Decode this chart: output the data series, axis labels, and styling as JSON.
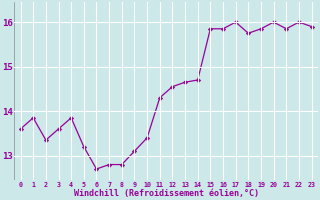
{
  "x": [
    0,
    1,
    2,
    3,
    4,
    5,
    6,
    7,
    8,
    9,
    10,
    11,
    12,
    13,
    14,
    15,
    16,
    17,
    18,
    19,
    20,
    21,
    22,
    23
  ],
  "y": [
    13.6,
    13.85,
    13.35,
    13.6,
    13.85,
    13.2,
    12.7,
    12.8,
    12.8,
    13.1,
    13.4,
    14.3,
    14.55,
    14.65,
    14.7,
    15.85,
    15.85,
    16.0,
    15.75,
    15.85,
    16.0,
    15.85,
    16.0,
    15.9
  ],
  "line_color": "#990099",
  "marker": "D",
  "marker_size": 2.2,
  "bg_color": "#cce8e8",
  "grid_color": "#ffffff",
  "xlabel": "Windchill (Refroidissement éolien,°C)",
  "xlabel_color": "#990099",
  "tick_color": "#990099",
  "ylabel_ticks": [
    13,
    14,
    15,
    16
  ],
  "xtick_labels": [
    "0",
    "1",
    "2",
    "3",
    "4",
    "5",
    "6",
    "7",
    "8",
    "9",
    "10",
    "11",
    "12",
    "13",
    "14",
    "15",
    "16",
    "17",
    "18",
    "19",
    "20",
    "21",
    "22",
    "23"
  ],
  "ylim": [
    12.45,
    16.45
  ],
  "xlim": [
    -0.5,
    23.5
  ],
  "figwidth": 3.2,
  "figheight": 2.0,
  "dpi": 100
}
